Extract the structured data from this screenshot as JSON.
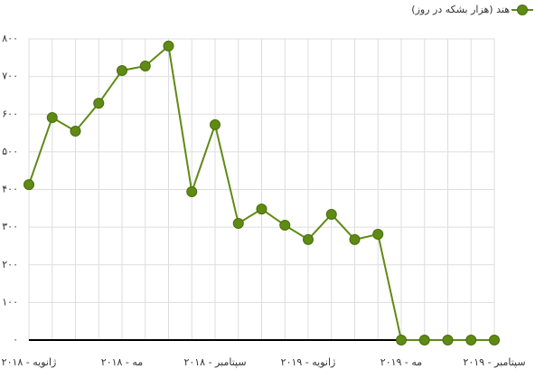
{
  "chart_data": {
    "type": "line",
    "categories": [
      "ژانویه - ۲۰۱۸",
      null,
      null,
      null,
      "مه - ۲۰۱۸",
      null,
      null,
      null,
      "سپتامبر - ۲۰۱۸",
      null,
      null,
      null,
      "ژانویه - ۲۰۱۹",
      null,
      null,
      null,
      "مه - ۲۰۱۹",
      null,
      null,
      null,
      "سپتامبر - ۲۰۱۹"
    ],
    "series": [
      {
        "name": "هند (هزار بشکه در روز)",
        "color": "#5f8a14",
        "values": [
          413,
          591,
          555,
          629,
          716,
          728,
          781,
          394,
          572,
          310,
          348,
          305,
          267,
          334,
          267,
          281,
          0,
          0,
          0,
          0,
          0
        ]
      }
    ],
    "ylim": [
      0,
      800
    ],
    "yticks": [
      {
        "value": 0,
        "label": "۰"
      },
      {
        "value": 100,
        "label": "۱۰۰"
      },
      {
        "value": 200,
        "label": "۲۰۰"
      },
      {
        "value": 300,
        "label": "۳۰۰"
      },
      {
        "value": 400,
        "label": "۴۰۰"
      },
      {
        "value": 500,
        "label": "۵۰۰"
      },
      {
        "value": 600,
        "label": "۶۰۰"
      },
      {
        "value": 700,
        "label": "۷۰۰"
      },
      {
        "value": 800,
        "label": "۸۰۰"
      }
    ],
    "grid": true,
    "legend": "top-right"
  }
}
